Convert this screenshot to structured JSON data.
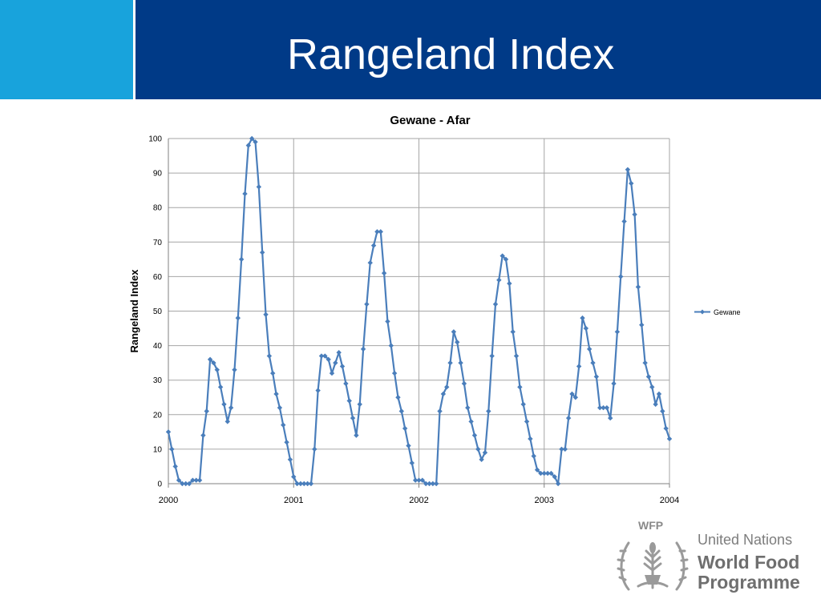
{
  "slide": {
    "title": "Rangeland Index",
    "header_color": "#003a87",
    "accent_color": "#18a3dc"
  },
  "chart_data": {
    "type": "line",
    "title": "Gewane - Afar",
    "xlabel": "",
    "ylabel": "Rangeland Index",
    "xlim": [
      2000,
      2004
    ],
    "ylim": [
      0,
      100
    ],
    "x_ticks": [
      "2000",
      "2001",
      "2002",
      "2003",
      "2004"
    ],
    "y_ticks": [
      "0",
      "10",
      "20",
      "30",
      "40",
      "50",
      "60",
      "70",
      "80",
      "90",
      "100"
    ],
    "grid": "vertical at years, horizontal at every 10",
    "legend_position": "right",
    "series": [
      {
        "name": "Gewane",
        "color": "#4a7ebb",
        "marker": "diamond",
        "start_year": 2000,
        "step_years": 0.02777778,
        "values": [
          15,
          10,
          5,
          1,
          0,
          0,
          0,
          1,
          1,
          1,
          14,
          21,
          36,
          35,
          33,
          28,
          23,
          18,
          22,
          33,
          48,
          65,
          84,
          98,
          100,
          99,
          86,
          67,
          49,
          37,
          32,
          26,
          22,
          17,
          12,
          7,
          2,
          0,
          0,
          0,
          0,
          0,
          10,
          27,
          37,
          37,
          36,
          32,
          35,
          38,
          34,
          29,
          24,
          19,
          14,
          23,
          39,
          52,
          64,
          69,
          73,
          73,
          61,
          47,
          40,
          32,
          25,
          21,
          16,
          11,
          6,
          1,
          1,
          1,
          0,
          0,
          0,
          0,
          21,
          26,
          28,
          35,
          44,
          41,
          35,
          29,
          22,
          18,
          14,
          10,
          7,
          9,
          21,
          37,
          52,
          59,
          66,
          65,
          58,
          44,
          37,
          28,
          23,
          18,
          13,
          8,
          4,
          3,
          3,
          3,
          3,
          2,
          0,
          10,
          10,
          19,
          26,
          25,
          34,
          48,
          45,
          39,
          35,
          31,
          22,
          22,
          22,
          19,
          29,
          44,
          60,
          76,
          91,
          87,
          78,
          57,
          46,
          35,
          31,
          28,
          23,
          26,
          21,
          16,
          13
        ]
      }
    ]
  },
  "logo": {
    "acronym": "WFP",
    "org_line1": "United Nations",
    "org_line2": "World Food",
    "org_line3": "Programme"
  }
}
